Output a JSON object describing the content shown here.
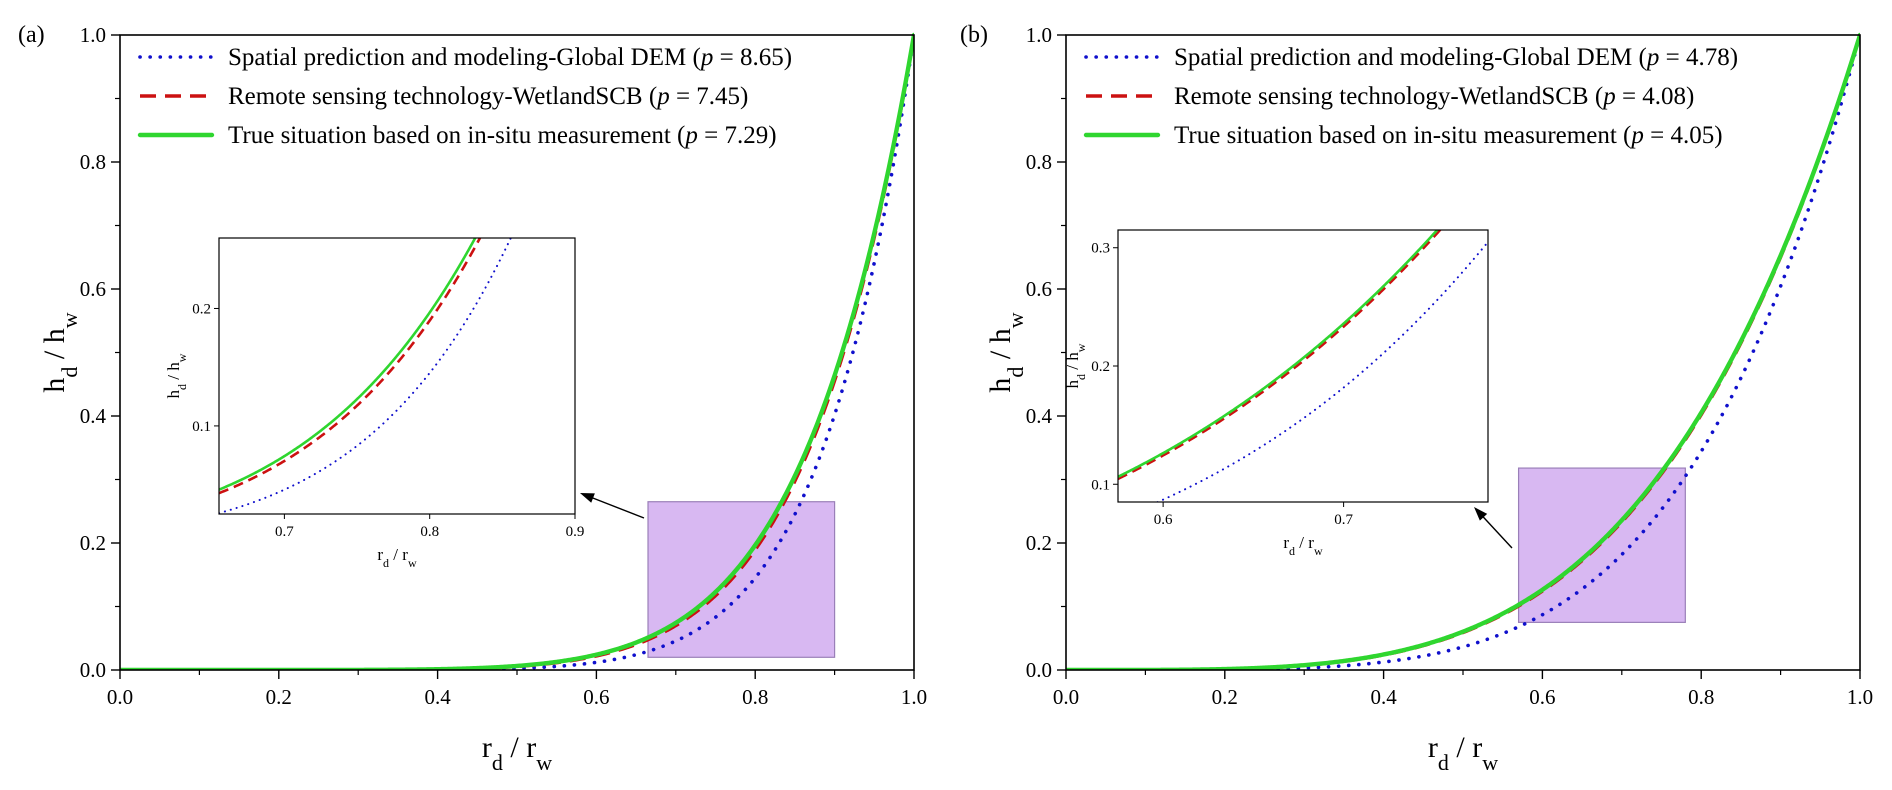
{
  "colors": {
    "dem": "#1010cc",
    "scb": "#cc1111",
    "true": "#2fd62f",
    "zoom_fill": "#d8b8f2",
    "zoom_stroke": "#9a7fb8"
  },
  "chart_data": [
    {
      "type": "line",
      "panel_label": "(a)",
      "xlabel": "r_d / r_w",
      "ylabel": "h_d / h_w",
      "xlim": [
        0,
        1
      ],
      "ylim": [
        0,
        1
      ],
      "x_ticks": [
        "0.0",
        "0.2",
        "0.4",
        "0.6",
        "0.8",
        "1.0"
      ],
      "y_ticks": [
        "0.0",
        "0.2",
        "0.4",
        "0.6",
        "0.8",
        "1.0"
      ],
      "legend_position": "top-left",
      "series": [
        {
          "key": "dem",
          "name": "Spatial prediction and modeling-Global DEM",
          "p_label": "p",
          "p_value": "8.65",
          "style": "dotted",
          "p": 8.65
        },
        {
          "key": "scb",
          "name": "Remote sensing technology-WetlandSCB",
          "p_label": "p",
          "p_value": "7.45",
          "style": "dashed",
          "p": 7.45
        },
        {
          "key": "true",
          "name": "True situation based on in-situ measurement",
          "p_label": "p",
          "p_value": "7.29",
          "style": "solid",
          "p": 7.29
        }
      ],
      "zoom_region": {
        "x": [
          0.665,
          0.9
        ],
        "y": [
          0.02,
          0.265
        ]
      },
      "inset": {
        "xlabel": "r_d / r_w",
        "ylabel": "h_d / h_w",
        "xlim": [
          0.655,
          0.9
        ],
        "ylim": [
          0.025,
          0.26
        ],
        "x_ticks": [
          "0.7",
          "0.8",
          "0.9"
        ],
        "y_ticks": [
          "0.1",
          "0.2"
        ]
      }
    },
    {
      "type": "line",
      "panel_label": "(b)",
      "xlabel": "r_d / r_w",
      "ylabel": "h_d / h_w",
      "xlim": [
        0,
        1
      ],
      "ylim": [
        0,
        1
      ],
      "x_ticks": [
        "0.0",
        "0.2",
        "0.4",
        "0.6",
        "0.8",
        "1.0"
      ],
      "y_ticks": [
        "0.0",
        "0.2",
        "0.4",
        "0.6",
        "0.8",
        "1.0"
      ],
      "legend_position": "top-left",
      "series": [
        {
          "key": "dem",
          "name": "Spatial prediction and modeling-Global DEM",
          "p_label": "p",
          "p_value": "4.78",
          "style": "dotted",
          "p": 4.78
        },
        {
          "key": "scb",
          "name": "Remote sensing technology-WetlandSCB",
          "p_label": "p",
          "p_value": "4.08",
          "style": "dashed",
          "p": 4.08
        },
        {
          "key": "true",
          "name": "True situation based on in-situ measurement",
          "p_label": "p",
          "p_value": "4.05",
          "style": "solid",
          "p": 4.05
        }
      ],
      "zoom_region": {
        "x": [
          0.57,
          0.78
        ],
        "y": [
          0.075,
          0.318
        ]
      },
      "inset": {
        "xlabel": "r_d / r_w",
        "ylabel": "h_d / h_w",
        "xlim": [
          0.575,
          0.78
        ],
        "ylim": [
          0.085,
          0.315
        ],
        "x_ticks": [
          "0.6",
          "0.7"
        ],
        "y_ticks": [
          "0.1",
          "0.2",
          "0.3"
        ]
      }
    }
  ]
}
